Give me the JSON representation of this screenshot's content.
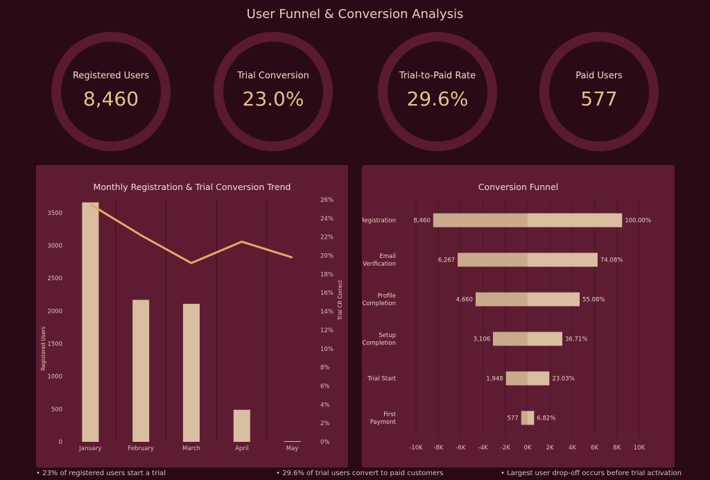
{
  "page": {
    "title": "User Funnel & Conversion Analysis"
  },
  "kpis": [
    {
      "label": "Registered Users",
      "value": "8,460"
    },
    {
      "label": "Trial Conversion",
      "value": "23.0%"
    },
    {
      "label": "Trial-to-Paid Rate",
      "value": "29.6%"
    },
    {
      "label": "Paid Users",
      "value": "577"
    }
  ],
  "footnotes": [
    "• 23% of registered users start a trial",
    "• 29.6% of trial users convert to paid customers",
    "• Largest user drop-off occurs before trial activation"
  ],
  "colors": {
    "background": "#2a0a16",
    "panel": "#5e1c33",
    "ring": "#5a1a30",
    "bar": "#d9bea1",
    "bar_shade": "#c9aa8d",
    "line": "#e5a96a",
    "kpi_value": "#e5c08e"
  },
  "chart_data": [
    {
      "type": "bar",
      "title": "Monthly Registration & Trial Conversion Trend",
      "categories": [
        "January",
        "February",
        "March",
        "April",
        "May"
      ],
      "series": [
        {
          "name": "Registered Users",
          "type": "bar",
          "axis": "left",
          "values": [
            3660,
            2170,
            2110,
            490,
            10
          ]
        },
        {
          "name": "Trial CR Correct",
          "type": "line",
          "axis": "right",
          "values": [
            25.5,
            22.2,
            19.2,
            21.5,
            19.8
          ]
        }
      ],
      "ylabel": "Registered Users",
      "ylim": [
        0,
        3700
      ],
      "yticks": [
        0,
        500,
        1000,
        1500,
        2000,
        2500,
        3000,
        3500
      ],
      "y2label": "Trial CR Correct",
      "y2lim": [
        0,
        26
      ],
      "y2ticks": [
        "0%",
        "2%",
        "4%",
        "6%",
        "8%",
        "10%",
        "12%",
        "14%",
        "16%",
        "18%",
        "20%",
        "22%",
        "24%",
        "26%"
      ],
      "grid": "vertical"
    },
    {
      "type": "bar",
      "orientation": "horizontal-centered",
      "title": "Conversion Funnel",
      "categories": [
        [
          "Registration"
        ],
        [
          "Email",
          "Verification"
        ],
        [
          "Profile",
          "Completion"
        ],
        [
          "Setup",
          "Completion"
        ],
        [
          "Trial Start"
        ],
        [
          "First",
          "Payment"
        ]
      ],
      "values": [
        8460,
        6267,
        4660,
        3106,
        1948,
        577
      ],
      "value_labels": [
        "8,460",
        "6,267",
        "4,660",
        "3,106",
        "1,948",
        "577"
      ],
      "percent_labels": [
        "100.00%",
        "74.08%",
        "55.08%",
        "36.71%",
        "23.03%",
        "6.82%"
      ],
      "xlim": [
        -10000,
        10000
      ],
      "xticks": [
        "-10K",
        "-8K",
        "-6K",
        "-4K",
        "-2K",
        "0K",
        "2K",
        "4K",
        "6K",
        "8K",
        "10K"
      ],
      "grid": "vertical"
    }
  ]
}
